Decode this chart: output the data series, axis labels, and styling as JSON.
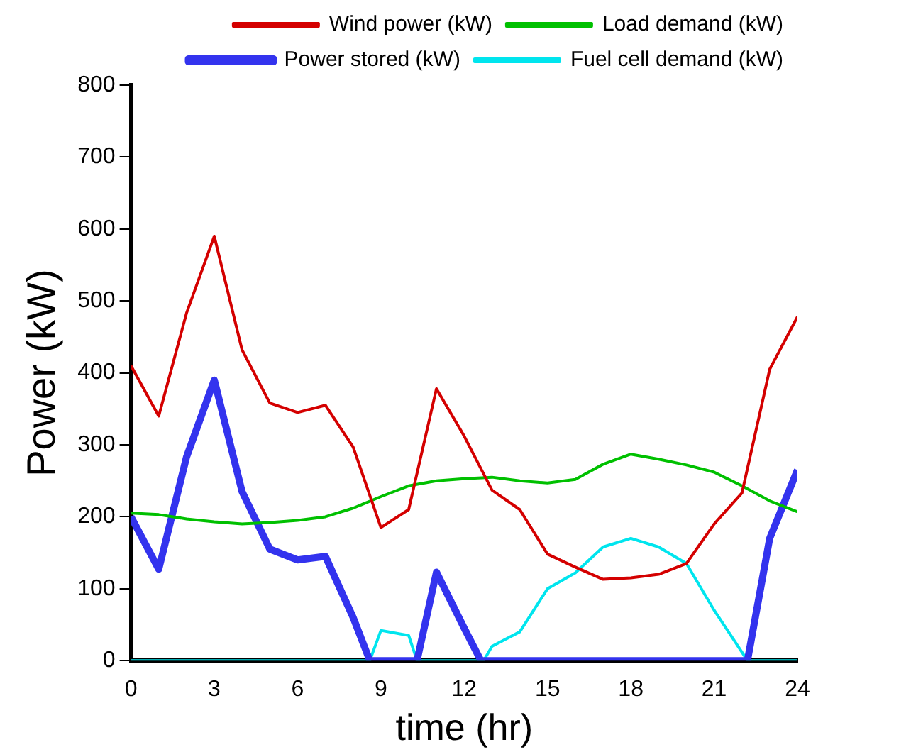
{
  "chart_data": {
    "type": "line",
    "xlabel": "time (hr)",
    "ylabel": "Power (kW)",
    "xlim": [
      0,
      24
    ],
    "xticks": [
      0,
      3,
      6,
      9,
      12,
      15,
      18,
      21,
      24
    ],
    "ylim": [
      0,
      800
    ],
    "yticks": [
      0,
      100,
      200,
      300,
      400,
      500,
      600,
      700,
      800
    ],
    "grid": false,
    "legend": "top right",
    "marker": "none",
    "line_style": "solid",
    "series": [
      {
        "name": "Wind power (kW)",
        "color": "#d40000",
        "x": [
          0,
          1,
          2,
          3,
          4,
          5,
          6,
          7,
          8,
          9,
          10,
          11,
          12,
          13,
          14,
          15,
          16,
          17,
          18,
          19,
          20,
          21,
          22,
          23,
          24
        ],
        "values": [
          410,
          340,
          483,
          590,
          432,
          358,
          345,
          355,
          297,
          185,
          210,
          378,
          312,
          237,
          210,
          148,
          130,
          113,
          115,
          120,
          135,
          190,
          233,
          405,
          478
        ]
      },
      {
        "name": "Load demand (kW)",
        "color": "#00c000",
        "x": [
          0,
          1,
          2,
          3,
          4,
          5,
          6,
          7,
          8,
          9,
          10,
          11,
          12,
          13,
          14,
          15,
          16,
          17,
          18,
          19,
          20,
          21,
          22,
          23,
          24
        ],
        "values": [
          205,
          203,
          197,
          193,
          190,
          192,
          195,
          200,
          212,
          228,
          243,
          250,
          253,
          255,
          250,
          247,
          252,
          273,
          287,
          280,
          272,
          262,
          243,
          222,
          207
        ]
      },
      {
        "name": "Power stored (kW)",
        "color": "#3333ee",
        "x": [
          0,
          1,
          2,
          3,
          4,
          5,
          6,
          7,
          8,
          8.6,
          10.3,
          11,
          12,
          12.6,
          22.2,
          23,
          24
        ],
        "values": [
          200,
          127,
          283,
          390,
          235,
          155,
          140,
          145,
          60,
          0,
          0,
          123,
          45,
          0,
          0,
          170,
          265
        ]
      },
      {
        "name": "Fuel cell demand (kW)",
        "color": "#00e5ee",
        "x": [
          0,
          8.6,
          9,
          10,
          10.3,
          12.7,
          13,
          14,
          15,
          16,
          17,
          18,
          19,
          20,
          21,
          22.2,
          24
        ],
        "values": [
          0,
          0,
          42,
          35,
          0,
          0,
          20,
          40,
          100,
          122,
          158,
          170,
          158,
          135,
          70,
          0,
          0
        ]
      }
    ]
  }
}
